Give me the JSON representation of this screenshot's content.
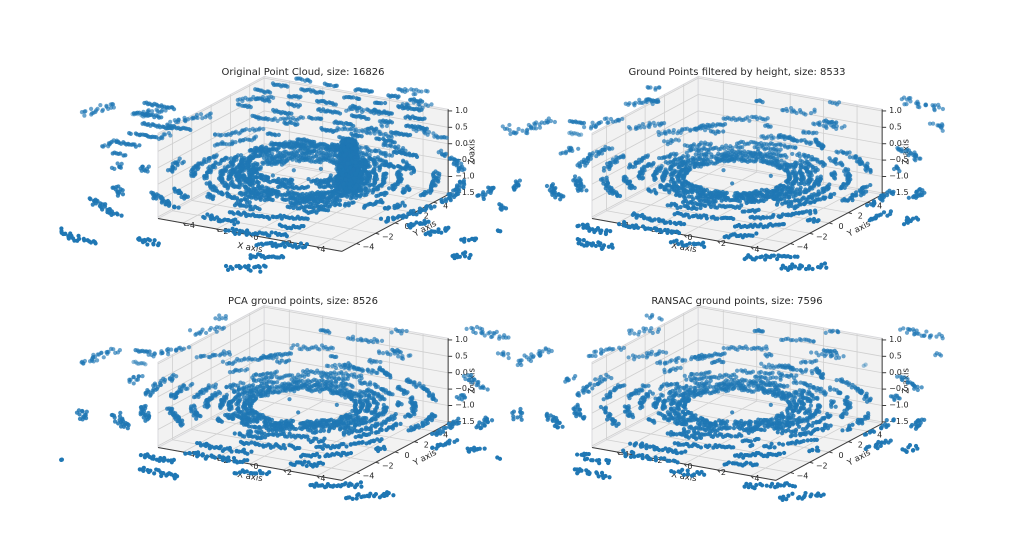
{
  "figure": {
    "background": "#ffffff",
    "pane_color": "#f2f2f2",
    "pane_edge_color": "#dadadd",
    "grid_color": "#cfcfcf",
    "axis_color": "#3c3c3c",
    "text_color": "#262626"
  },
  "chart_data": {
    "type": "scatter",
    "subtype": "3d-point-cloud-small-multiples",
    "marker_color": "#1f77b4",
    "view": {
      "elev": 30,
      "azim": -60
    },
    "axes": {
      "xlabel": "X axis",
      "ylabel": "Y axis",
      "zlabel": "Z axis",
      "xlim": [
        -5.5,
        5.5
      ],
      "ylim": [
        -5.5,
        5.5
      ],
      "zlim": [
        -1.55,
        1.05
      ],
      "xtick_values": [
        -4,
        -2,
        0,
        2,
        4
      ],
      "xtick_labels": [
        "−4",
        "−2",
        "0",
        "2",
        "4"
      ],
      "ytick_values": [
        4,
        2,
        0,
        -2,
        -4
      ],
      "ytick_labels": [
        "4",
        "2",
        "0",
        "−2",
        "−4"
      ],
      "ztick_values": [
        1.0,
        0.5,
        0.0,
        -0.5,
        -1.0,
        -1.5
      ],
      "ztick_labels": [
        "1.0",
        "0.5",
        "0.0",
        "−0.5",
        "−1.0",
        "−1.5"
      ]
    },
    "rings_common": [
      {
        "r": 2.75,
        "c": 0.97
      },
      {
        "r": 3.05,
        "c": 0.96
      },
      {
        "r": 3.4,
        "c": 0.93
      },
      {
        "r": 3.8,
        "c": 0.9
      },
      {
        "r": 4.25,
        "c": 0.82
      },
      {
        "r": 5.0,
        "c": 0.72
      },
      {
        "r": 5.75,
        "c": 0.62
      },
      {
        "r": 6.9,
        "c": 0.55
      },
      {
        "r": 8.3,
        "c": 0.34
      },
      {
        "r": 9.8,
        "c": 0.25
      },
      {
        "r": 11.5,
        "c": 0.16
      },
      {
        "r": 13.5,
        "c": 0.12
      },
      {
        "r": 15.5,
        "c": 0.08
      }
    ],
    "subplots": [
      {
        "name": "original",
        "title": "Original Point Cloud, size: 16826",
        "point_count": 16826,
        "ring_seed": 7,
        "dropout": 0.03,
        "ground_z": -0.65,
        "extra_rings": [
          {
            "r": 2.9,
            "z": -0.25,
            "c": 0.85
          },
          {
            "r": 3.25,
            "z": -0.27,
            "c": 0.8
          },
          {
            "r": 3.7,
            "z": -0.3,
            "c": 0.7
          }
        ],
        "spike": {
          "cx": 2.0,
          "cy": 1.3,
          "width": 0.62,
          "base_z": -1.1,
          "top_z": 0.45,
          "n": 1100
        },
        "rows": [
          {
            "y": 4.9,
            "z": 1.28,
            "segs": [
              [
                -3.2,
                -2.3
              ],
              [
                -1.5,
                -0.7
              ],
              [
                0.3,
                1.4
              ],
              [
                2.3,
                3.0
              ],
              [
                3.6,
                4.3
              ]
            ]
          },
          {
            "y": 4.3,
            "z": 1.12,
            "segs": [
              [
                -4.3,
                -3.4
              ],
              [
                -2.6,
                -1.1
              ],
              [
                0.0,
                0.9
              ],
              [
                1.8,
                2.5
              ],
              [
                3.2,
                4.6
              ]
            ]
          },
          {
            "y": 3.7,
            "z": 0.98,
            "segs": [
              [
                -5.0,
                -4.1
              ],
              [
                -3.0,
                -2.2
              ],
              [
                -1.3,
                -0.2
              ],
              [
                0.7,
                1.2
              ],
              [
                2.0,
                3.3
              ],
              [
                4.0,
                5.1
              ]
            ]
          },
          {
            "y": 3.1,
            "z": 0.84,
            "segs": [
              [
                -4.6,
                -3.8
              ],
              [
                -2.7,
                -1.9
              ],
              [
                -0.9,
                0.4
              ],
              [
                1.1,
                2.2
              ],
              [
                3.0,
                3.6
              ],
              [
                4.4,
                5.6
              ]
            ]
          },
          {
            "y": 2.4,
            "z": 0.7,
            "segs": [
              [
                -5.3,
                -4.4
              ],
              [
                -3.2,
                -2.0
              ],
              [
                -1.0,
                -0.3
              ],
              [
                0.5,
                1.7
              ],
              [
                2.5,
                3.1
              ],
              [
                3.9,
                5.0
              ]
            ]
          },
          {
            "y": 1.7,
            "z": 0.56,
            "segs": [
              [
                -4.0,
                -3.1
              ],
              [
                -2.1,
                -1.2
              ],
              [
                0.1,
                1.0
              ],
              [
                1.9,
                2.6
              ],
              [
                3.4,
                4.5
              ]
            ]
          },
          {
            "y": 0.8,
            "z": 0.32,
            "segs": [
              [
                -2.6,
                -1.8
              ],
              [
                -0.8,
                0.2
              ],
              [
                1.4,
                2.1
              ]
            ]
          },
          {
            "y": 0.1,
            "z": 0.18,
            "segs": [
              [
                -1.9,
                -1.2
              ],
              [
                -0.2,
                0.6
              ]
            ]
          },
          {
            "y": 0.9,
            "z": 0.42,
            "segs": [
              [
                4.9,
                6.3
              ]
            ]
          },
          {
            "y": -0.6,
            "z": 0.3,
            "segs": [
              [
                5.1,
                6.7
              ],
              [
                -7.8,
                -6.4
              ]
            ]
          },
          {
            "y": -0.5,
            "z": 0.85,
            "segs": [
              [
                -9.2,
                -7.4
              ]
            ]
          },
          {
            "y": -1.2,
            "z": 0.65,
            "segs": [
              [
                -9.4,
                -7.8
              ]
            ]
          },
          {
            "y": -1.6,
            "z": 0.45,
            "segs": [
              [
                -8.7,
                -6.9
              ]
            ]
          },
          {
            "y": -2.6,
            "z": 0.3,
            "segs": [
              [
                -8.9,
                -7.3
              ]
            ]
          },
          {
            "y": -3.6,
            "z": 0.16,
            "segs": [
              [
                -9.1,
                -7.7
              ]
            ]
          },
          {
            "y": -4.6,
            "z": 0.02,
            "segs": [
              [
                -8.7,
                -8.0
              ]
            ]
          },
          {
            "y": -0.9,
            "z": 0.55,
            "segs": [
              [
                -9.7,
                -8.9
              ]
            ],
            "alpha": 0.45
          }
        ],
        "dots": [
          [
            0.5,
            -0.3
          ],
          [
            1.2,
            0.8
          ],
          [
            -0.9,
            0.6
          ],
          [
            0.2,
            1.5
          ],
          [
            -1.4,
            -0.7
          ],
          [
            1.8,
            -0.5
          ],
          [
            -0.3,
            -1.6
          ],
          [
            0.9,
            1.9
          ],
          [
            2.2,
            0.3
          ],
          [
            -1.9,
            1.1
          ]
        ]
      },
      {
        "name": "filtered",
        "title": "Ground Points filtered by height, size: 8533",
        "point_count": 8533,
        "ring_seed": 42,
        "dropout": 0.05,
        "ground_z": -0.65,
        "elevated_rings": [
          {
            "r": 4.45,
            "z": 0.14,
            "c": 0.3,
            "th": [
              25,
              165
            ]
          },
          {
            "r": 3.7,
            "z": 0.08,
            "c": 0.22,
            "th": [
              55,
              150
            ]
          }
        ],
        "rows": [
          {
            "y": 4.9,
            "z": 0.75,
            "segs": [
              [
                -1.8,
                -1.2
              ]
            ]
          },
          {
            "y": 4.7,
            "z": 0.55,
            "segs": [
              [
                2.5,
                3.3
              ]
            ]
          },
          {
            "y": 1.5,
            "z": 0.9,
            "segs": [
              [
                -6.3,
                -5.6
              ]
            ]
          },
          {
            "y": -1.0,
            "z": 0.35,
            "segs": [
              [
                -9.4,
                -8.6
              ]
            ]
          },
          {
            "y": -2.0,
            "z": 0.2,
            "segs": [
              [
                -8.9,
                -8.2
              ]
            ],
            "alpha": 0.5
          }
        ],
        "dots": [
          [
            0.4,
            -1.2
          ],
          [
            -1.1,
            0.5
          ],
          [
            1.5,
            0.9
          ]
        ]
      },
      {
        "name": "pca",
        "title": "PCA ground points, size: 8526",
        "point_count": 8526,
        "ring_seed": 42,
        "dropout": 0.06,
        "ground_z": -0.65,
        "elevated_rings": [
          {
            "r": 4.45,
            "z": 0.14,
            "c": 0.3,
            "th": [
              25,
              165
            ]
          },
          {
            "r": 3.7,
            "z": 0.08,
            "c": 0.22,
            "th": [
              55,
              150
            ]
          }
        ],
        "rows": [
          {
            "y": 4.8,
            "z": 0.75,
            "segs": [
              [
                -1.7,
                -1.1
              ]
            ]
          },
          {
            "y": 4.7,
            "z": 0.55,
            "segs": [
              [
                2.6,
                3.2
              ]
            ]
          },
          {
            "y": -1.2,
            "z": 0.4,
            "segs": [
              [
                -9.3,
                -8.5
              ]
            ]
          },
          {
            "y": -2.3,
            "z": 0.25,
            "segs": [
              [
                -8.8,
                -8.1
              ]
            ],
            "alpha": 0.5
          }
        ],
        "dots": [
          [
            0.4,
            -1.2
          ],
          [
            -1.1,
            0.5
          ],
          [
            1.5,
            0.9
          ]
        ]
      },
      {
        "name": "ransac",
        "title": "RANSAC ground points, size: 7596",
        "point_count": 7596,
        "ring_seed": 42,
        "dropout": 0.17,
        "ground_z": -0.65,
        "elevated_rings": [
          {
            "r": 4.45,
            "z": 0.14,
            "c": 0.28,
            "th": [
              25,
              165
            ]
          },
          {
            "r": 3.7,
            "z": 0.08,
            "c": 0.2,
            "th": [
              55,
              150
            ]
          }
        ],
        "rows": [
          {
            "y": 4.8,
            "z": 0.75,
            "segs": [
              [
                -1.7,
                -1.1
              ]
            ]
          },
          {
            "y": 4.7,
            "z": 0.55,
            "segs": [
              [
                2.5,
                3.3
              ]
            ]
          },
          {
            "y": 4.5,
            "z": 0.35,
            "segs": [
              [
                5.0,
                5.2
              ]
            ],
            "alpha": 0.4
          }
        ],
        "dots": [
          [
            0.4,
            -1.2
          ],
          [
            1.5,
            0.9
          ]
        ]
      }
    ]
  }
}
